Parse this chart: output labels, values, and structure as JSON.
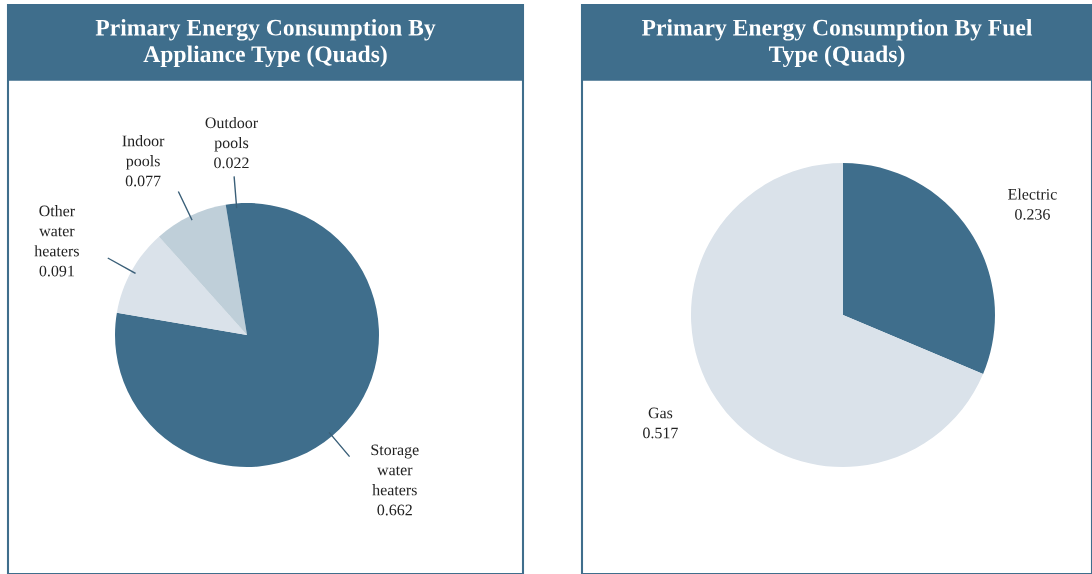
{
  "chart_data": [
    {
      "type": "pie",
      "title": "Primary Energy Consumption By\nAppliance Type (Quads)",
      "categories": [
        "Storage\nwater\nheaters",
        "Other\nwater\nheaters",
        "Indoor\npools",
        "Outdoor\npools"
      ],
      "values": [
        0.662,
        0.091,
        0.077,
        0.022
      ],
      "data_labels": true,
      "colors": [
        "#3f6e8c",
        "#dae2ea",
        "#bfcfd9",
        "#3f6e8c"
      ]
    },
    {
      "type": "pie",
      "title": "Primary Energy Consumption By Fuel\nType (Quads)",
      "categories": [
        "Electric",
        "Gas"
      ],
      "values": [
        0.236,
        0.517
      ],
      "data_labels": true,
      "colors": [
        "#3f6e8c",
        "#dae2ea"
      ]
    }
  ]
}
